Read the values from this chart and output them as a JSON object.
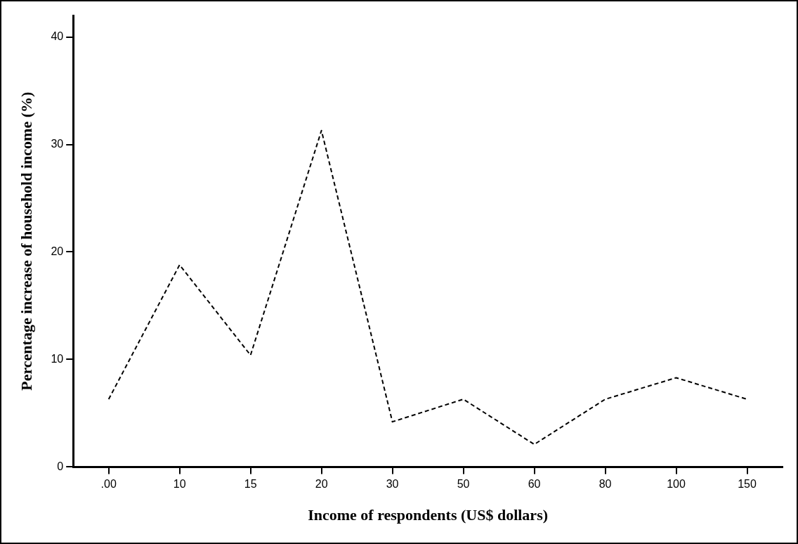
{
  "chart_data": {
    "type": "line",
    "xlabel": "Income of respondents (US$ dollars)",
    "ylabel": "Percentage increase of household income (%)",
    "categories": [
      ".00",
      "10",
      "15",
      "20",
      "30",
      "50",
      "60",
      "80",
      "100",
      "150"
    ],
    "series": [
      {
        "color": "#000000",
        "values": [
          6.3,
          18.8,
          10.4,
          31.3,
          4.2,
          6.3,
          2.1,
          6.3,
          8.3,
          6.3
        ]
      }
    ],
    "ylim": [
      0,
      42
    ],
    "yticks": [
      0,
      10,
      20,
      30,
      40
    ],
    "grid": false,
    "legend": false,
    "marker": "none",
    "line_style": "dashed"
  }
}
